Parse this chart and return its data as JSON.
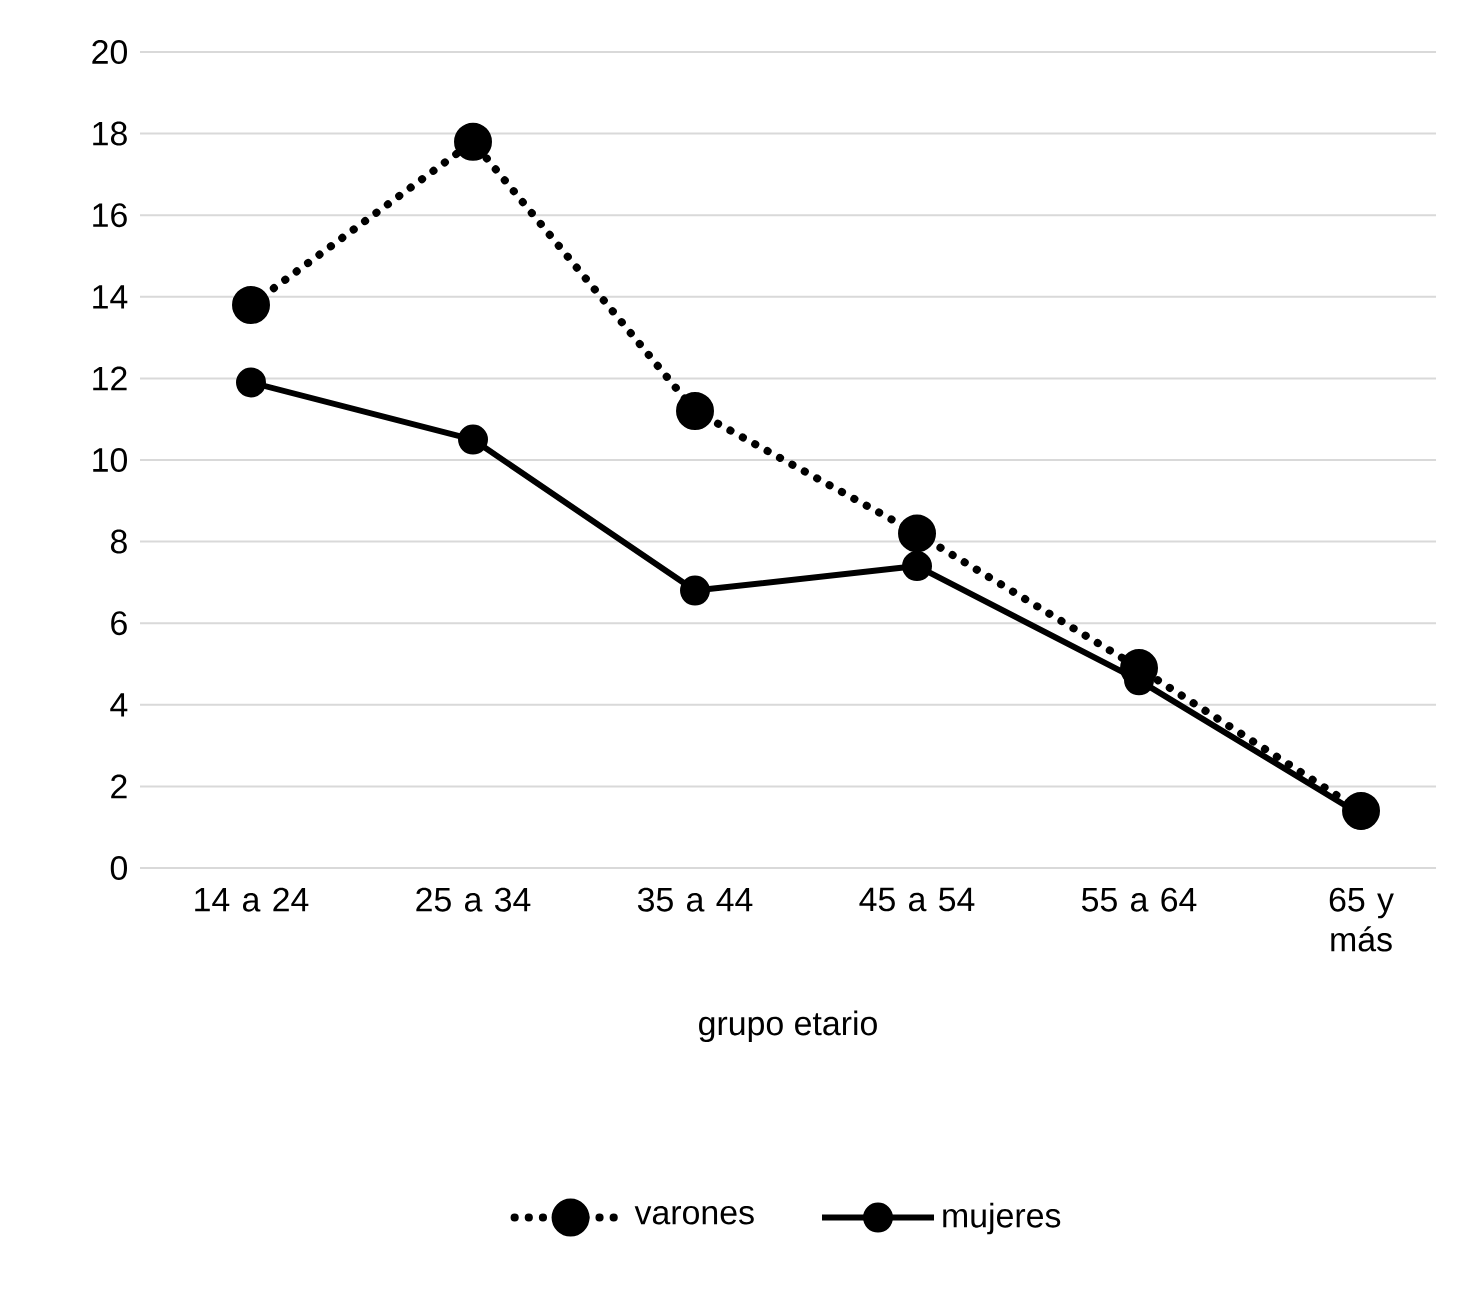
{
  "chart_data": {
    "type": "line",
    "xlabel": "grupo etario",
    "categories": [
      "14 a 24",
      "25 a 34",
      "35 a 44",
      "45 a 54",
      "55 a 64",
      "65 y más"
    ],
    "series": [
      {
        "name": "varones",
        "color": "#000000",
        "line_style": "dotted",
        "values": [
          13.8,
          17.8,
          11.2,
          8.2,
          4.9,
          1.4
        ]
      },
      {
        "name": "mujeres",
        "color": "#000000",
        "line_style": "solid",
        "values": [
          11.9,
          10.5,
          6.8,
          7.4,
          4.6,
          1.3
        ]
      }
    ],
    "ylim": [
      0,
      20
    ],
    "yticks": [
      0,
      2,
      4,
      6,
      8,
      10,
      12,
      14,
      16,
      18,
      20
    ],
    "grid": "y",
    "legend": "bottom",
    "marker": "circle"
  }
}
